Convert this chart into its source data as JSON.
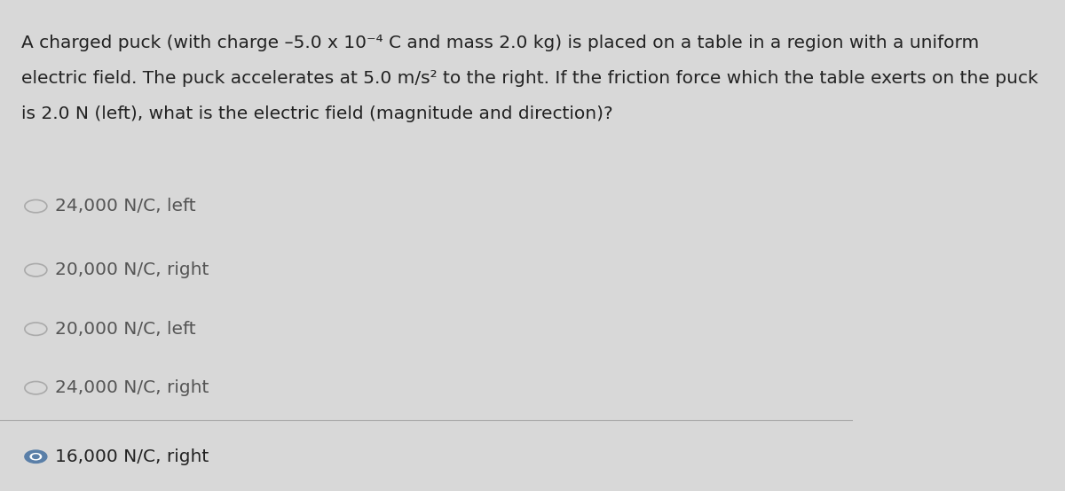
{
  "background_color": "#d8d8d8",
  "question_text_line1": "A charged puck (with charge –5.0 x 10⁻⁴ C and mass 2.0 kg) is placed on a table in a region with a uniform",
  "question_text_line2": "electric field. The puck accelerates at 5.0 m/s² to the right. If the friction force which the table exerts on the puck",
  "question_text_line3": "is 2.0 N (left), what is the electric field (magnitude and direction)?",
  "options": [
    {
      "text": "24,000 N/C, left",
      "selected": false
    },
    {
      "text": "20,000 N/C, right",
      "selected": false
    },
    {
      "text": "20,000 N/C, left",
      "selected": false
    },
    {
      "text": "24,000 N/C, right",
      "selected": false
    },
    {
      "text": "16,000 N/C, right",
      "selected": true
    }
  ],
  "text_color": "#222222",
  "option_text_color": "#555555",
  "selected_color": "#5a7fa8",
  "unselected_color": "#aaaaaa",
  "font_size_question": 14.5,
  "font_size_options": 14.5,
  "separator_color": "#aaaaaa"
}
